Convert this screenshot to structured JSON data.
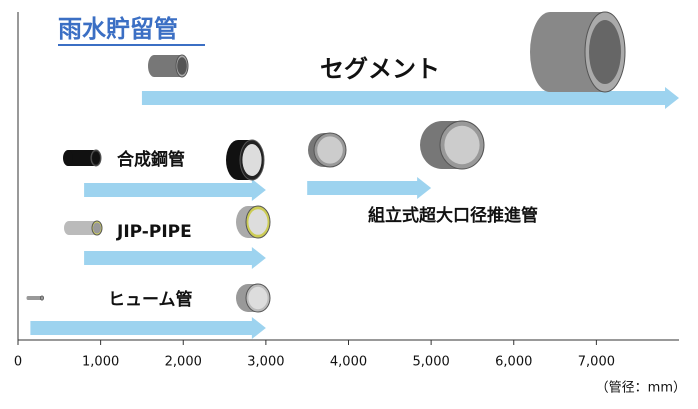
{
  "chart_data": {
    "type": "range-arrow",
    "title": "雨水貯留管",
    "x_unit_label": "（管径：mm）",
    "xlim": [
      0,
      8000
    ],
    "xticks": [
      0,
      {
        "value": 1000,
        "label": "1,000"
      },
      {
        "value": 2000,
        "label": "2,000"
      },
      {
        "value": 3000,
        "label": "3,000"
      },
      {
        "value": 4000,
        "label": "4,000"
      },
      {
        "value": 5000,
        "label": "5,000"
      },
      {
        "value": 6000,
        "label": "6,000"
      },
      {
        "value": 7000,
        "label": "7,000"
      }
    ],
    "color": "#9dd3ef",
    "series": [
      {
        "name": "セグメント",
        "start": 1500,
        "end": 8000
      },
      {
        "name": "合成鋼管",
        "start": 800,
        "end": 3000
      },
      {
        "name": "組立式超大口径推進管",
        "start": 3500,
        "end": 5000
      },
      {
        "name": "JIP-PIPE",
        "start": 800,
        "end": 3000
      },
      {
        "name": "ヒューム管",
        "start": 150,
        "end": 3000
      }
    ]
  }
}
